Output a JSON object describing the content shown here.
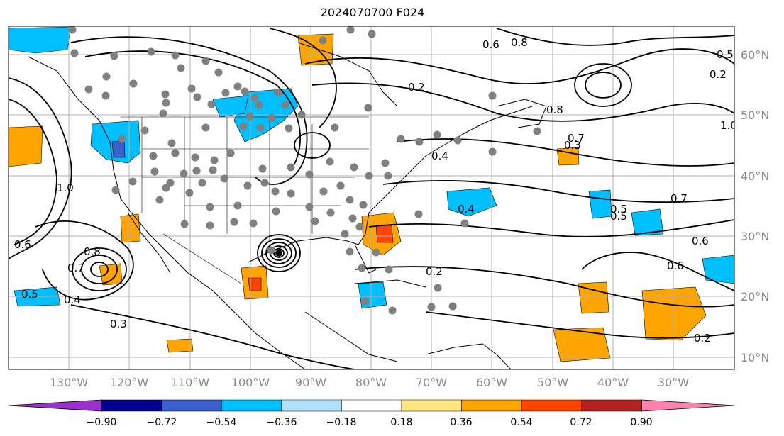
{
  "title": "2024070700 F024",
  "lat_labels": [
    "60°N",
    "50°N",
    "40°N",
    "30°N",
    "20°N",
    "10°N"
  ],
  "lon_labels": [
    "130°W",
    "120°W",
    "110°W",
    "100°W",
    "90°W",
    "80°W",
    "70°W",
    "60°W",
    "50°W",
    "40°W",
    "30°W"
  ],
  "contour_labels": [
    "0.4",
    "0.3",
    "0.5",
    "0.6",
    "0.7",
    "0.8",
    "0.2",
    "0.3",
    "0.4",
    "0.5",
    "0.6",
    "0.2",
    "0.8",
    "0.7",
    "0.4",
    "0.5",
    "0.6",
    "0.5",
    "0.2",
    "1.0",
    "0.6",
    "0.7",
    "0.8",
    "1.0",
    "0.2"
  ],
  "colorbar": {
    "ticks": [
      "−0.90",
      "−0.72",
      "−0.54",
      "−0.36",
      "−0.18",
      "0.18",
      "0.36",
      "0.54",
      "0.72",
      "0.90"
    ],
    "colors": [
      "#9b30d0",
      "#00008b",
      "#3a5fcd",
      "#00bfff",
      "#b0e2ff",
      "#ffffff",
      "#ffe680",
      "#ffa500",
      "#ff4500",
      "#b22222",
      "#ff82ab"
    ]
  },
  "colors": {
    "neg_light": "#b0e2ff",
    "neg_mid": "#00bfff",
    "neg_strong": "#3a5fcd",
    "pos_light": "#ffe680",
    "pos_mid": "#ffa500",
    "pos_strong": "#ff4500",
    "station": "#808080"
  }
}
